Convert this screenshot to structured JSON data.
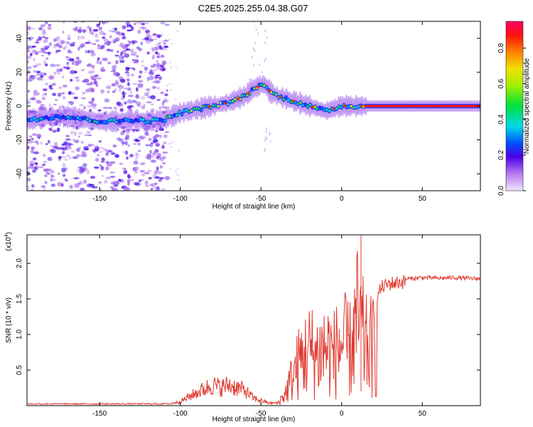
{
  "chart_data": [
    {
      "type": "heatmap",
      "title": "C2E5.2025.255.04.38.G07",
      "xlabel": "Height of straight line (km)",
      "ylabel": "Frequency (Hz)",
      "xlim": [
        -195,
        86
      ],
      "ylim": [
        -50,
        50
      ],
      "xticks": [
        -150,
        -100,
        -50,
        0,
        50
      ],
      "yticks": [
        -40,
        -20,
        0,
        20,
        40
      ],
      "colorbar": {
        "label": "Normalized spectral amplitude",
        "range": [
          0.0,
          0.95
        ],
        "ticks": [
          0.0,
          0.2,
          0.4,
          0.6,
          0.8
        ]
      },
      "ridge": {
        "x": [
          -195,
          -185,
          -175,
          -165,
          -150,
          -140,
          -130,
          -120,
          -110,
          -100,
          -90,
          -80,
          -70,
          -60,
          -55,
          -48,
          -44,
          -40,
          -30,
          -20,
          -10,
          0,
          10,
          20,
          40,
          60,
          86
        ],
        "freq_hz": [
          -8,
          -7,
          -6,
          -7,
          -9,
          -9,
          -8,
          -9,
          -8,
          -4,
          -2,
          0,
          2,
          6,
          10,
          13,
          8,
          6,
          3,
          0,
          -3,
          0,
          0,
          0,
          0,
          0,
          0
        ]
      }
    },
    {
      "type": "line",
      "xlabel": "Height of straight line (km)",
      "ylabel": "SNR (10 * v/v)",
      "scale_label": "(x10",
      "scale_exponent": "4",
      "xlim": [
        -195,
        86
      ],
      "ylim": [
        0,
        2.4
      ],
      "xticks": [
        -150,
        -100,
        -50,
        0,
        50
      ],
      "yticks": [
        0.5,
        1.0,
        1.5,
        2.0
      ],
      "ytick_labels": [
        "0.5",
        "1.0",
        "1.5",
        "2.0"
      ],
      "line_color": "#e03a30",
      "series": [
        {
          "name": "SNR",
          "x": [
            -195,
            -150,
            -110,
            -100,
            -90,
            -80,
            -75,
            -70,
            -60,
            -55,
            -50,
            -45,
            -40,
            -35,
            -30,
            -25,
            -20,
            -15,
            -10,
            -5,
            0,
            5,
            10,
            15,
            20,
            25,
            30,
            40,
            50,
            60,
            70,
            86
          ],
          "y": [
            0.02,
            0.02,
            0.02,
            0.08,
            0.25,
            0.4,
            0.35,
            0.4,
            0.3,
            0.15,
            0.1,
            0.05,
            0.05,
            0.3,
            0.8,
            1.2,
            1.4,
            1.3,
            1.5,
            1.3,
            1.6,
            1.4,
            2.2,
            1.5,
            1.5,
            1.7,
            1.75,
            1.78,
            1.8,
            1.79,
            1.8,
            1.78
          ]
        }
      ]
    }
  ]
}
